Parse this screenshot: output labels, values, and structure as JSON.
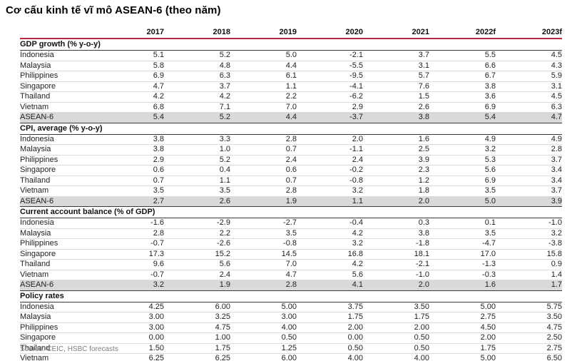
{
  "title": "Cơ cấu kinh tế vĩ mô ASEAN-6 (theo năm)",
  "source": "Source: CEIC, HSBC forecasts",
  "colors": {
    "accent_rule": "#b5293e",
    "dark_rule": "#3a3a3a",
    "row_rule": "#dcdcdc",
    "highlight_row_bg": "#d9d9d9",
    "source_text": "#7f7f7f"
  },
  "chart_data": {
    "type": "table",
    "title": "Cơ cấu kinh tế vĩ mô ASEAN-6 (theo năm)",
    "columns": [
      "2017",
      "2018",
      "2019",
      "2020",
      "2021",
      "2022f",
      "2023f"
    ],
    "sections": [
      {
        "header": "GDP growth (% y-o-y)",
        "rows": [
          {
            "label": "Indonesia",
            "values": [
              "5.1",
              "5.2",
              "5.0",
              "-2.1",
              "3.7",
              "5.5",
              "4.5"
            ],
            "highlight": false
          },
          {
            "label": "Malaysia",
            "values": [
              "5.8",
              "4.8",
              "4.4",
              "-5.5",
              "3.1",
              "6.6",
              "4.3"
            ],
            "highlight": false
          },
          {
            "label": "Philippines",
            "values": [
              "6.9",
              "6.3",
              "6.1",
              "-9.5",
              "5.7",
              "6.7",
              "5.9"
            ],
            "highlight": false
          },
          {
            "label": "Singapore",
            "values": [
              "4.7",
              "3.7",
              "1.1",
              "-4.1",
              "7.6",
              "3.8",
              "3.1"
            ],
            "highlight": false
          },
          {
            "label": "Thailand",
            "values": [
              "4.2",
              "4.2",
              "2.2",
              "-6.2",
              "1.5",
              "3.6",
              "4.5"
            ],
            "highlight": false
          },
          {
            "label": "Vietnam",
            "values": [
              "6.8",
              "7.1",
              "7.0",
              "2.9",
              "2.6",
              "6.9",
              "6.3"
            ],
            "highlight": false
          },
          {
            "label": "ASEAN-6",
            "values": [
              "5.4",
              "5.2",
              "4.4",
              "-3.7",
              "3.8",
              "5.4",
              "4.7"
            ],
            "highlight": true
          }
        ]
      },
      {
        "header": "CPI, average (% y-o-y)",
        "rows": [
          {
            "label": "Indonesia",
            "values": [
              "3.8",
              "3.3",
              "2.8",
              "2.0",
              "1.6",
              "4.9",
              "4.9"
            ],
            "highlight": false
          },
          {
            "label": "Malaysia",
            "values": [
              "3.8",
              "1.0",
              "0.7",
              "-1.1",
              "2.5",
              "3.2",
              "2.8"
            ],
            "highlight": false
          },
          {
            "label": "Philippines",
            "values": [
              "2.9",
              "5.2",
              "2.4",
              "2.4",
              "3.9",
              "5.3",
              "3.7"
            ],
            "highlight": false
          },
          {
            "label": "Singapore",
            "values": [
              "0.6",
              "0.4",
              "0.6",
              "-0.2",
              "2.3",
              "5.6",
              "3.4"
            ],
            "highlight": false
          },
          {
            "label": "Thailand",
            "values": [
              "0.7",
              "1.1",
              "0.7",
              "-0.8",
              "1.2",
              "6.9",
              "3.4"
            ],
            "highlight": false
          },
          {
            "label": "Vietnam",
            "values": [
              "3.5",
              "3.5",
              "2.8",
              "3.2",
              "1.8",
              "3.5",
              "3.7"
            ],
            "highlight": false
          },
          {
            "label": "ASEAN-6",
            "values": [
              "2.7",
              "2.6",
              "1.9",
              "1.1",
              "2.0",
              "5.0",
              "3.9"
            ],
            "highlight": true
          }
        ]
      },
      {
        "header": "Current account balance (% of GDP)",
        "rows": [
          {
            "label": "Indonesia",
            "values": [
              "-1.6",
              "-2.9",
              "-2.7",
              "-0.4",
              "0.3",
              "0.1",
              "-1.0"
            ],
            "highlight": false
          },
          {
            "label": "Malaysia",
            "values": [
              "2.8",
              "2.2",
              "3.5",
              "4.2",
              "3.8",
              "3.5",
              "3.2"
            ],
            "highlight": false
          },
          {
            "label": "Philippines",
            "values": [
              "-0.7",
              "-2.6",
              "-0.8",
              "3.2",
              "-1.8",
              "-4.7",
              "-3.8"
            ],
            "highlight": false
          },
          {
            "label": "Singapore",
            "values": [
              "17.3",
              "15.2",
              "14.5",
              "16.8",
              "18.1",
              "17.0",
              "15.8"
            ],
            "highlight": false
          },
          {
            "label": "Thailand",
            "values": [
              "9.6",
              "5.6",
              "7.0",
              "4.2",
              "-2.1",
              "-1.3",
              "0.9"
            ],
            "highlight": false
          },
          {
            "label": "Vietnam",
            "values": [
              "-0.7",
              "2.4",
              "4.7",
              "5.6",
              "-1.0",
              "-0.3",
              "1.4"
            ],
            "highlight": false
          },
          {
            "label": "ASEAN-6",
            "values": [
              "3.2",
              "1.9",
              "2.8",
              "4.1",
              "2.0",
              "1.6",
              "1.7"
            ],
            "highlight": true
          }
        ]
      },
      {
        "header": "Policy rates",
        "rows": [
          {
            "label": "Indonesia",
            "values": [
              "4.25",
              "6.00",
              "5.00",
              "3.75",
              "3.50",
              "5.00",
              "5.75"
            ],
            "highlight": false
          },
          {
            "label": "Malaysia",
            "values": [
              "3.00",
              "3.25",
              "3.00",
              "1.75",
              "1.75",
              "2.75",
              "3.50"
            ],
            "highlight": false
          },
          {
            "label": "Philippines",
            "values": [
              "3.00",
              "4.75",
              "4.00",
              "2.00",
              "2.00",
              "4.50",
              "4.75"
            ],
            "highlight": false
          },
          {
            "label": "Singapore",
            "values": [
              "0.00",
              "1.00",
              "0.50",
              "0.00",
              "0.50",
              "2.00",
              "2.50"
            ],
            "highlight": false
          },
          {
            "label": "Thailand",
            "values": [
              "1.50",
              "1.75",
              "1.25",
              "0.50",
              "0.50",
              "1.75",
              "2.75"
            ],
            "highlight": false
          },
          {
            "label": "Vietnam",
            "values": [
              "6.25",
              "6.25",
              "6.00",
              "4.00",
              "4.00",
              "5.00",
              "6.50"
            ],
            "highlight": false
          }
        ]
      }
    ],
    "source": "Source: CEIC, HSBC forecasts"
  }
}
